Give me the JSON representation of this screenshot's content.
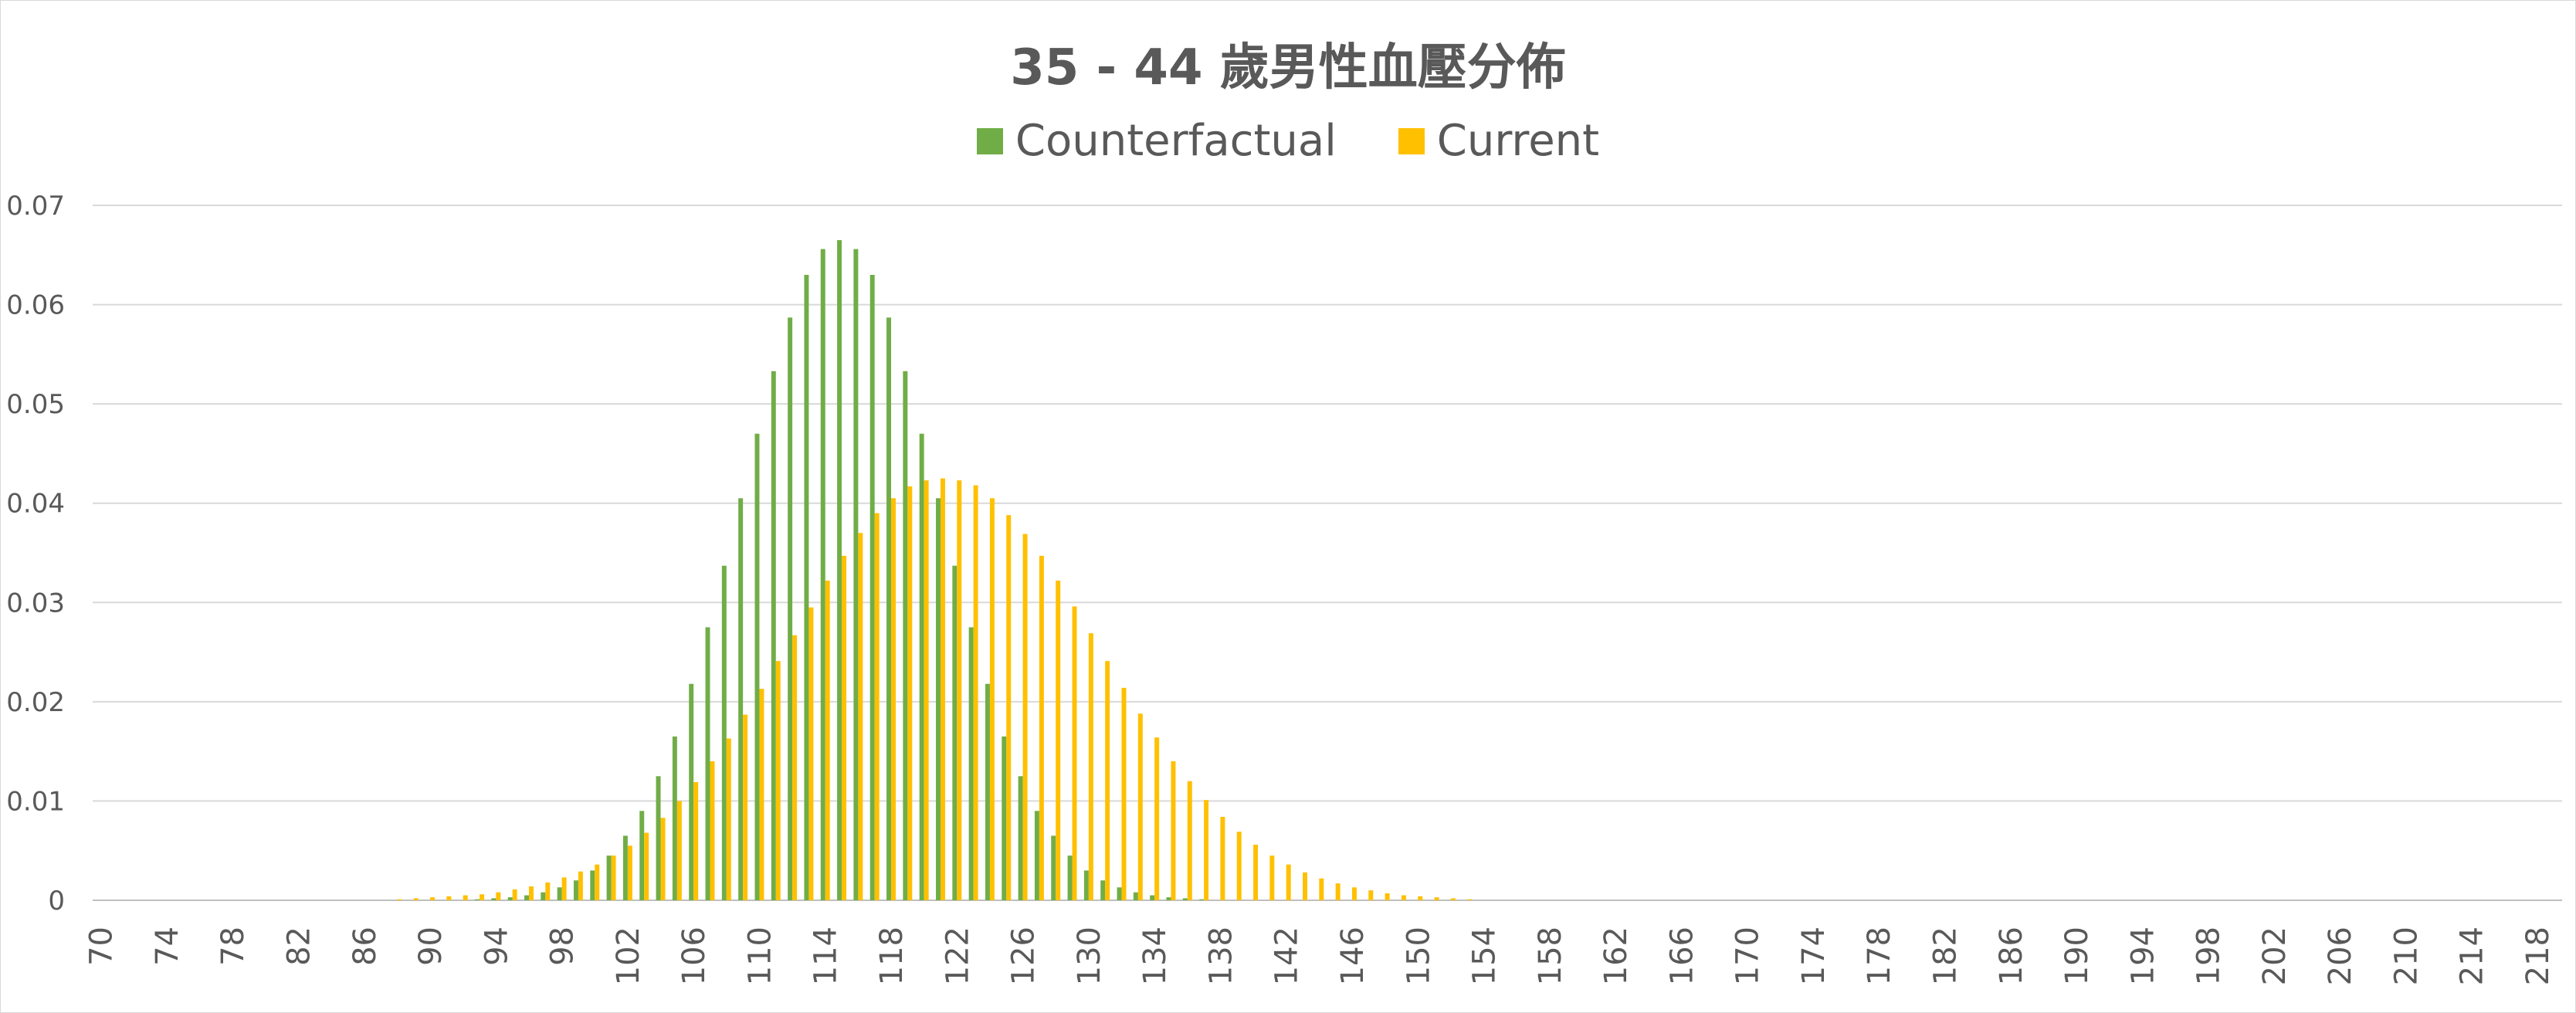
{
  "chart_data": {
    "type": "bar",
    "title": "35 - 44 歲男性血壓分佈",
    "xlabel": "",
    "ylabel": "",
    "ylim": [
      0,
      0.07
    ],
    "yticks": [
      "0.07",
      "0.06",
      "0.05",
      "0.04",
      "0.03",
      "0.02",
      "0.01",
      "0"
    ],
    "x_start": 70,
    "x_end": 219,
    "x_tick_step": 4,
    "grid": true,
    "legend_position": "top",
    "series": [
      {
        "name": "Counterfactual",
        "color": "#70AD47",
        "values": {
          "93": 0.0001,
          "94": 0.0002,
          "95": 0.0003,
          "96": 0.0005,
          "97": 0.0008,
          "98": 0.0013,
          "99": 0.002,
          "100": 0.003,
          "101": 0.0045,
          "102": 0.0065,
          "103": 0.009,
          "104": 0.0125,
          "105": 0.0165,
          "106": 0.0218,
          "107": 0.0275,
          "108": 0.0337,
          "109": 0.0405,
          "110": 0.047,
          "111": 0.0533,
          "112": 0.0587,
          "113": 0.063,
          "114": 0.0656,
          "115": 0.0665,
          "116": 0.0656,
          "117": 0.063,
          "118": 0.0587,
          "119": 0.0533,
          "120": 0.047,
          "121": 0.0405,
          "122": 0.0337,
          "123": 0.0275,
          "124": 0.0218,
          "125": 0.0165,
          "126": 0.0125,
          "127": 0.009,
          "128": 0.0065,
          "129": 0.0045,
          "130": 0.003,
          "131": 0.002,
          "132": 0.0013,
          "133": 0.0008,
          "134": 0.0005,
          "135": 0.0003,
          "136": 0.0002,
          "137": 0.0001
        }
      },
      {
        "name": "Current",
        "color": "#FFC000",
        "values": {
          "88": 0.0001,
          "89": 0.0002,
          "90": 0.0003,
          "91": 0.0004,
          "92": 0.0005,
          "93": 0.0006,
          "94": 0.0008,
          "95": 0.0011,
          "96": 0.0014,
          "97": 0.0018,
          "98": 0.0023,
          "99": 0.0029,
          "100": 0.0036,
          "101": 0.0045,
          "102": 0.0055,
          "103": 0.0068,
          "104": 0.0083,
          "105": 0.01,
          "106": 0.0119,
          "107": 0.014,
          "108": 0.0163,
          "109": 0.0187,
          "110": 0.0213,
          "111": 0.0241,
          "112": 0.0267,
          "113": 0.0295,
          "114": 0.0322,
          "115": 0.0347,
          "116": 0.037,
          "117": 0.039,
          "118": 0.0405,
          "119": 0.0417,
          "120": 0.0423,
          "121": 0.0425,
          "122": 0.0423,
          "123": 0.0418,
          "124": 0.0405,
          "125": 0.0388,
          "126": 0.0369,
          "127": 0.0347,
          "128": 0.0322,
          "129": 0.0296,
          "130": 0.0269,
          "131": 0.0241,
          "132": 0.0214,
          "133": 0.0188,
          "134": 0.0164,
          "135": 0.014,
          "136": 0.012,
          "137": 0.0101,
          "138": 0.0084,
          "139": 0.0069,
          "140": 0.0056,
          "141": 0.0045,
          "142": 0.0036,
          "143": 0.0028,
          "144": 0.0022,
          "145": 0.0017,
          "146": 0.0013,
          "147": 0.001,
          "148": 0.0007,
          "149": 0.0005,
          "150": 0.0004,
          "151": 0.0003,
          "152": 0.0002,
          "153": 0.0001
        }
      }
    ]
  }
}
